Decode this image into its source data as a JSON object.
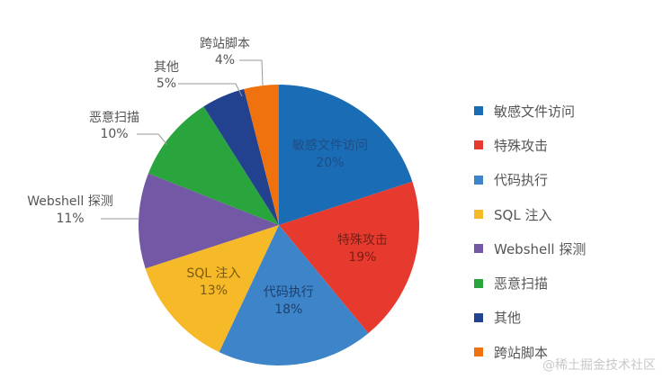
{
  "chart_data": {
    "type": "pie",
    "title": "",
    "slices": [
      {
        "label": "敏感文件访问",
        "value": 20,
        "display": "20%",
        "color": "#1a6db5",
        "label_color": "#1f4d86"
      },
      {
        "label": "特殊攻击",
        "value": 19,
        "display": "19%",
        "color": "#e63a2e",
        "label_color": "#7a1e16"
      },
      {
        "label": "代码执行",
        "value": 18,
        "display": "18%",
        "color": "#3d85c8",
        "label_color": "#1f3f6c"
      },
      {
        "label": "SQL 注入",
        "value": 13,
        "display": "13%",
        "color": "#f6b928",
        "label_color": "#7a5a10"
      },
      {
        "label": "Webshell 探测",
        "value": 11,
        "display": "11%",
        "color": "#7358a5",
        "label_color": "#555555"
      },
      {
        "label": "恶意扫描",
        "value": 10,
        "display": "10%",
        "color": "#2aa43c",
        "label_color": "#555555"
      },
      {
        "label": "其他",
        "value": 5,
        "display": "5%",
        "color": "#22418e",
        "label_color": "#555555"
      },
      {
        "label": "跨站脚本",
        "value": 4,
        "display": "4%",
        "color": "#ef720f",
        "label_color": "#555555"
      }
    ],
    "start_angle_deg": 0,
    "direction": "clockwise",
    "legend_position": "right"
  },
  "legend": {
    "items": [
      {
        "label": "敏感文件访问",
        "color": "#1a6db5"
      },
      {
        "label": "特殊攻击",
        "color": "#e63a2e"
      },
      {
        "label": "代码执行",
        "color": "#3d85c8"
      },
      {
        "label": "SQL 注入",
        "color": "#f6b928"
      },
      {
        "label": "Webshell 探测",
        "color": "#7358a5"
      },
      {
        "label": "恶意扫描",
        "color": "#2aa43c"
      },
      {
        "label": "其他",
        "color": "#22418e"
      },
      {
        "label": "跨站脚本",
        "color": "#ef720f"
      }
    ]
  },
  "watermark": "@稀土掘金技术社区"
}
